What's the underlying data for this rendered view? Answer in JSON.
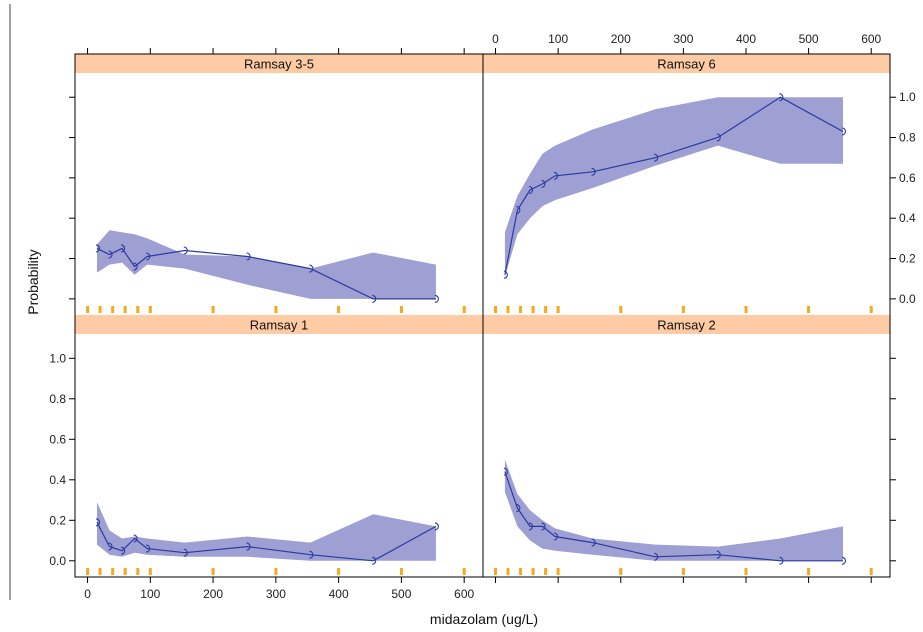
{
  "chart_data": {
    "type": "line",
    "xlabel": "midazolam (ug/L)",
    "ylabel": "Probability",
    "xlim": [
      -20,
      630
    ],
    "ylim": [
      -0.08,
      1.12
    ],
    "x_ticks": [
      "0",
      "100",
      "200",
      "300",
      "400",
      "500",
      "600"
    ],
    "x_tick_values": [
      0,
      100,
      200,
      300,
      400,
      500,
      600
    ],
    "y_ticks": [
      "0.0",
      "0.2",
      "0.4",
      "0.6",
      "0.8",
      "1.0"
    ],
    "y_tick_values": [
      0,
      0.2,
      0.4,
      0.6,
      0.8,
      1.0
    ],
    "rug_x": [
      0,
      20,
      40,
      60,
      80,
      100,
      200,
      300,
      400,
      500,
      600
    ],
    "colors": {
      "strip": "#ffcba4",
      "band": "#9e9fd3",
      "line": "#2b3aa0",
      "rug": "#f7a81b",
      "border": "#000000"
    },
    "panels": [
      {
        "strip": "Ramsay 3-5",
        "x": [
          15,
          35,
          55,
          75,
          95,
          155,
          255,
          355,
          455,
          555
        ],
        "y": [
          0.25,
          0.22,
          0.25,
          0.16,
          0.21,
          0.24,
          0.21,
          0.15,
          0.0,
          0.0
        ],
        "band_x": [
          15,
          35,
          55,
          75,
          95,
          155,
          255,
          355,
          455,
          555
        ],
        "band_lower": [
          0.13,
          0.17,
          0.18,
          0.12,
          0.17,
          0.15,
          0.07,
          0.0,
          0.0,
          0.0
        ],
        "band_upper": [
          0.27,
          0.34,
          0.33,
          0.32,
          0.3,
          0.22,
          0.21,
          0.15,
          0.23,
          0.17
        ]
      },
      {
        "strip": "Ramsay 6",
        "x": [
          15,
          35,
          55,
          75,
          95,
          155,
          255,
          355,
          455,
          555
        ],
        "y": [
          0.12,
          0.44,
          0.54,
          0.57,
          0.61,
          0.63,
          0.7,
          0.8,
          1.0,
          0.83
        ],
        "band_x": [
          15,
          35,
          55,
          75,
          95,
          155,
          255,
          355,
          455,
          555
        ],
        "band_lower": [
          0.11,
          0.32,
          0.4,
          0.46,
          0.49,
          0.55,
          0.66,
          0.76,
          0.67,
          0.67
        ],
        "band_upper": [
          0.33,
          0.51,
          0.62,
          0.72,
          0.76,
          0.84,
          0.94,
          1.0,
          1.0,
          1.0
        ]
      },
      {
        "strip": "Ramsay 1",
        "x": [
          15,
          35,
          55,
          75,
          95,
          155,
          255,
          355,
          455,
          555
        ],
        "y": [
          0.19,
          0.07,
          0.05,
          0.11,
          0.06,
          0.04,
          0.07,
          0.03,
          0.0,
          0.17
        ],
        "band_x": [
          15,
          35,
          55,
          75,
          95,
          155,
          255,
          355,
          455,
          555
        ],
        "band_lower": [
          0.08,
          0.03,
          0.02,
          0.04,
          0.03,
          0.02,
          0.02,
          0.0,
          0.0,
          0.0
        ],
        "band_upper": [
          0.29,
          0.15,
          0.11,
          0.12,
          0.11,
          0.09,
          0.12,
          0.09,
          0.23,
          0.17
        ]
      },
      {
        "strip": "Ramsay 2",
        "x": [
          15,
          35,
          55,
          75,
          95,
          155,
          255,
          355,
          455,
          555
        ],
        "y": [
          0.44,
          0.26,
          0.17,
          0.17,
          0.12,
          0.09,
          0.02,
          0.03,
          0.0,
          0.0
        ],
        "band_x": [
          15,
          35,
          55,
          75,
          95,
          155,
          255,
          355,
          455,
          555
        ],
        "band_lower": [
          0.34,
          0.17,
          0.1,
          0.06,
          0.05,
          0.03,
          0.0,
          0.0,
          0.0,
          0.0
        ],
        "band_upper": [
          0.5,
          0.33,
          0.25,
          0.2,
          0.16,
          0.11,
          0.08,
          0.07,
          0.11,
          0.17
        ]
      }
    ]
  }
}
